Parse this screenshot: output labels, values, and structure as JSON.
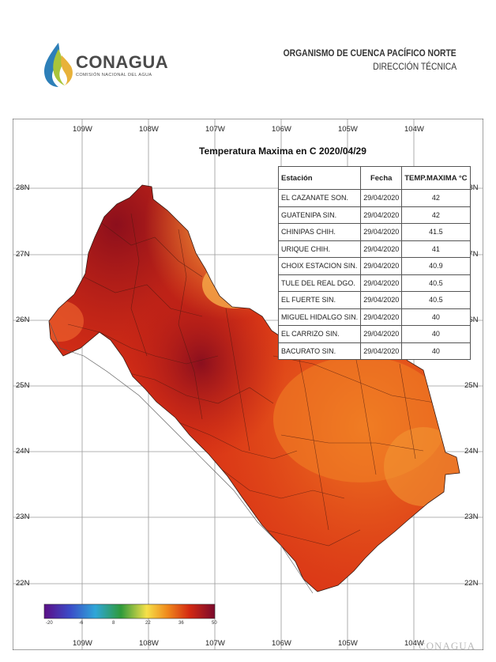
{
  "header": {
    "logo_text": "CONAGUA",
    "logo_subtext": "COMISIÓN NACIONAL DEL AGUA",
    "organization": "ORGANISMO DE CUENCA PACÍFICO NORTE",
    "department": "DIRECCIÓN TÉCNICA"
  },
  "map": {
    "title": "Temperatura Maxima en C  2020/04/29",
    "lon_ticks": [
      "109W",
      "108W",
      "107W",
      "106W",
      "105W",
      "104W"
    ],
    "lat_ticks": [
      "28N",
      "27N",
      "26N",
      "25N",
      "24N",
      "23N",
      "22N"
    ],
    "colorbar_ticks": [
      "-20",
      "-6",
      "8",
      "22",
      "36",
      "50"
    ],
    "colorbar_colors": [
      "#5b0f86",
      "#3b4bc8",
      "#2fa6d8",
      "#2f9a3a",
      "#f6e14a",
      "#f08a1c",
      "#d42a12",
      "#7a0a2c"
    ],
    "watermark": "CONAGUA"
  },
  "table": {
    "headers": [
      "Estación",
      "Fecha",
      "TEMP.MAXIMA °C"
    ],
    "rows": [
      [
        "EL CAZANATE SON.",
        "29/04/2020",
        "42"
      ],
      [
        "GUATENIPA SIN.",
        "29/04/2020",
        "42"
      ],
      [
        "CHINIPAS CHIH.",
        "29/04/2020",
        "41.5"
      ],
      [
        "URIQUE CHIH.",
        "29/04/2020",
        "41"
      ],
      [
        "CHOIX ESTACION SIN.",
        "29/04/2020",
        "40.9"
      ],
      [
        "TULE DEL REAL DGO.",
        "29/04/2020",
        "40.5"
      ],
      [
        "EL FUERTE SIN.",
        "29/04/2020",
        "40.5"
      ],
      [
        "MIGUEL HIDALGO SIN.",
        "29/04/2020",
        "40"
      ],
      [
        "EL CARRIZO SIN.",
        "29/04/2020",
        "40"
      ],
      [
        "BACURATO SIN.",
        "29/04/2020",
        "40"
      ]
    ]
  }
}
